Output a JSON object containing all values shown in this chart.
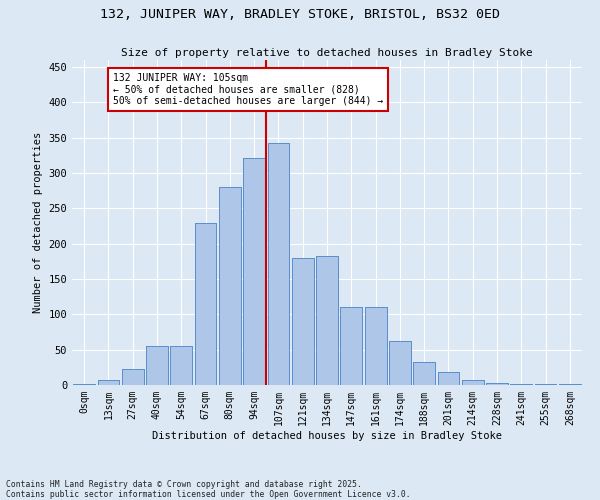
{
  "title": "132, JUNIPER WAY, BRADLEY STOKE, BRISTOL, BS32 0ED",
  "subtitle": "Size of property relative to detached houses in Bradley Stoke",
  "xlabel": "Distribution of detached houses by size in Bradley Stoke",
  "ylabel": "Number of detached properties",
  "footer": "Contains HM Land Registry data © Crown copyright and database right 2025.\nContains public sector information licensed under the Open Government Licence v3.0.",
  "bar_labels": [
    "0sqm",
    "13sqm",
    "27sqm",
    "40sqm",
    "54sqm",
    "67sqm",
    "80sqm",
    "94sqm",
    "107sqm",
    "121sqm",
    "134sqm",
    "147sqm",
    "161sqm",
    "174sqm",
    "188sqm",
    "201sqm",
    "214sqm",
    "228sqm",
    "241sqm",
    "255sqm",
    "268sqm"
  ],
  "bar_values": [
    2,
    7,
    22,
    55,
    55,
    230,
    280,
    322,
    342,
    180,
    182,
    110,
    110,
    62,
    32,
    18,
    7,
    3,
    2,
    1,
    1
  ],
  "bar_color": "#aec6e8",
  "bar_edge_color": "#5b8fcc",
  "bg_color": "#dce9f5",
  "grid_color": "#ffffff",
  "vline_color": "#cc0000",
  "annotation_text": "132 JUNIPER WAY: 105sqm\n← 50% of detached houses are smaller (828)\n50% of semi-detached houses are larger (844) →",
  "annotation_box_color": "#ffffff",
  "annotation_box_edge": "#cc0000",
  "ylim": [
    0,
    460
  ],
  "yticks": [
    0,
    50,
    100,
    150,
    200,
    250,
    300,
    350,
    400,
    450
  ],
  "vline_pos": 7.5
}
